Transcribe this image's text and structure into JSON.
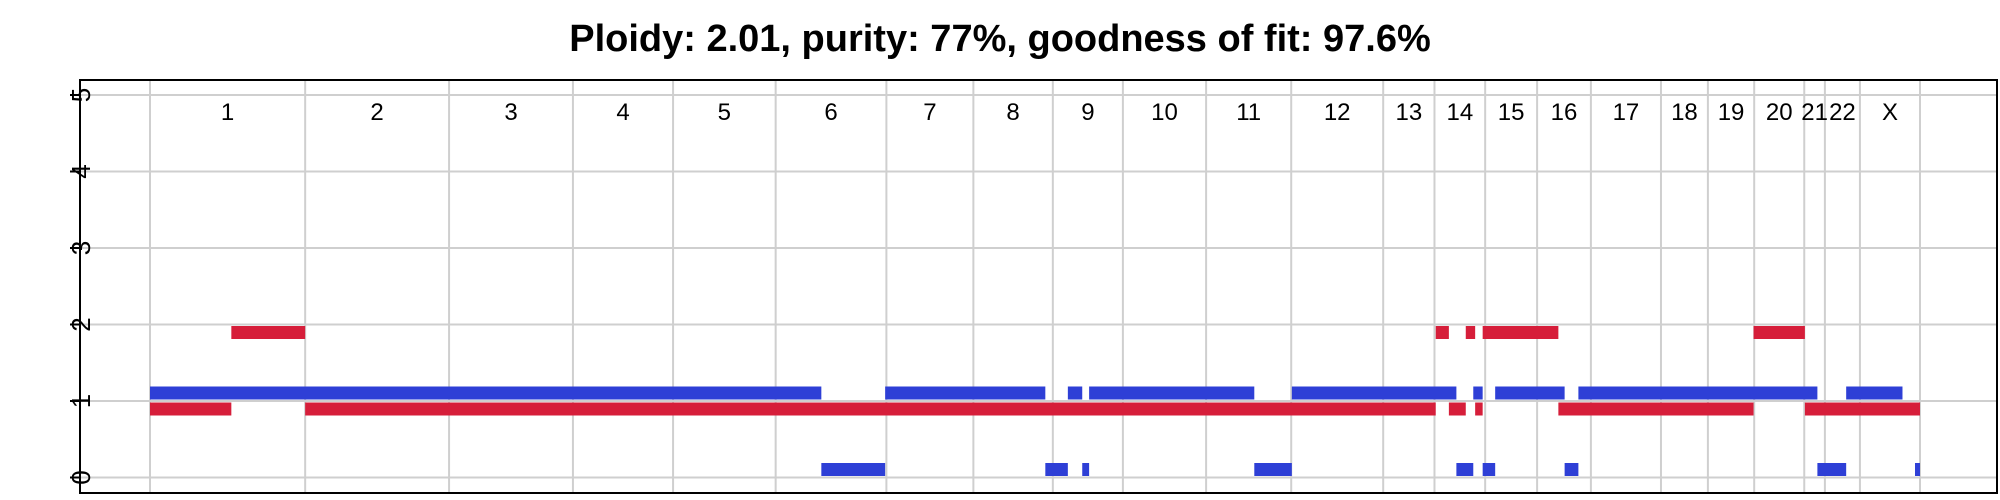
{
  "chart_data": {
    "type": "segment",
    "title": "Ploidy: 2.01, purity: 77%, goodness of fit: 97.6%",
    "xlabel": "",
    "ylabel": "",
    "ylim": [
      0,
      5
    ],
    "yticks": [
      0,
      1,
      2,
      3,
      4,
      5
    ],
    "grid": true,
    "legend": "none",
    "chromosomes": [
      {
        "label": "1",
        "start": 0,
        "end": 248
      },
      {
        "label": "2",
        "start": 248,
        "end": 478
      },
      {
        "label": "3",
        "start": 478,
        "end": 676
      },
      {
        "label": "4",
        "start": 676,
        "end": 836
      },
      {
        "label": "5",
        "start": 836,
        "end": 1000
      },
      {
        "label": "6",
        "start": 1000,
        "end": 1177
      },
      {
        "label": "7",
        "start": 1177,
        "end": 1316
      },
      {
        "label": "8",
        "start": 1316,
        "end": 1443
      },
      {
        "label": "9",
        "start": 1443,
        "end": 1555
      },
      {
        "label": "10",
        "start": 1555,
        "end": 1688
      },
      {
        "label": "11",
        "start": 1688,
        "end": 1824
      },
      {
        "label": "12",
        "start": 1824,
        "end": 1971
      },
      {
        "label": "13",
        "start": 1971,
        "end": 2053
      },
      {
        "label": "14",
        "start": 2053,
        "end": 2134
      },
      {
        "label": "15",
        "start": 2134,
        "end": 2217
      },
      {
        "label": "16",
        "start": 2217,
        "end": 2303
      },
      {
        "label": "17",
        "start": 2303,
        "end": 2415
      },
      {
        "label": "18",
        "start": 2415,
        "end": 2490
      },
      {
        "label": "19",
        "start": 2490,
        "end": 2564
      },
      {
        "label": "20",
        "start": 2564,
        "end": 2644
      },
      {
        "label": "21",
        "start": 2644,
        "end": 2677
      },
      {
        "label": "22",
        "start": 2677,
        "end": 2733
      },
      {
        "label": "X",
        "start": 2733,
        "end": 2829
      }
    ],
    "series": [
      {
        "role": "major allele copy number",
        "color": "#2e3fd6",
        "segments": [
          {
            "start": 0,
            "end": 1073,
            "cn": 1
          },
          {
            "start": 1073,
            "end": 1175,
            "cn": 0
          },
          {
            "start": 1175,
            "end": 1431,
            "cn": 1
          },
          {
            "start": 1431,
            "end": 1467,
            "cn": 0
          },
          {
            "start": 1467,
            "end": 1490,
            "cn": 1
          },
          {
            "start": 1490,
            "end": 1501,
            "cn": 0
          },
          {
            "start": 1501,
            "end": 1765,
            "cn": 1
          },
          {
            "start": 1765,
            "end": 1825,
            "cn": 0
          },
          {
            "start": 1825,
            "end": 2088,
            "cn": 1
          },
          {
            "start": 2088,
            "end": 2115,
            "cn": 0
          },
          {
            "start": 2115,
            "end": 2130,
            "cn": 1
          },
          {
            "start": 2130,
            "end": 2150,
            "cn": 0
          },
          {
            "start": 2150,
            "end": 2261,
            "cn": 1
          },
          {
            "start": 2261,
            "end": 2283,
            "cn": 0
          },
          {
            "start": 2283,
            "end": 2665,
            "cn": 1
          },
          {
            "start": 2665,
            "end": 2711,
            "cn": 0
          },
          {
            "start": 2711,
            "end": 2801,
            "cn": 1
          },
          {
            "start": 2821,
            "end": 2829,
            "cn": 0
          }
        ]
      },
      {
        "role": "minor allele copy number",
        "color": "#d61e3a",
        "segments": [
          {
            "start": 0,
            "end": 130,
            "cn": 1
          },
          {
            "start": 130,
            "end": 248,
            "cn": 2
          },
          {
            "start": 248,
            "end": 2055,
            "cn": 1
          },
          {
            "start": 2055,
            "end": 2076,
            "cn": 2
          },
          {
            "start": 2076,
            "end": 2103,
            "cn": 1
          },
          {
            "start": 2103,
            "end": 2118,
            "cn": 2
          },
          {
            "start": 2118,
            "end": 2130,
            "cn": 1
          },
          {
            "start": 2130,
            "end": 2251,
            "cn": 2
          },
          {
            "start": 2251,
            "end": 2563,
            "cn": 1
          },
          {
            "start": 2563,
            "end": 2645,
            "cn": 2
          },
          {
            "start": 2645,
            "end": 2829,
            "cn": 1
          }
        ]
      }
    ]
  }
}
